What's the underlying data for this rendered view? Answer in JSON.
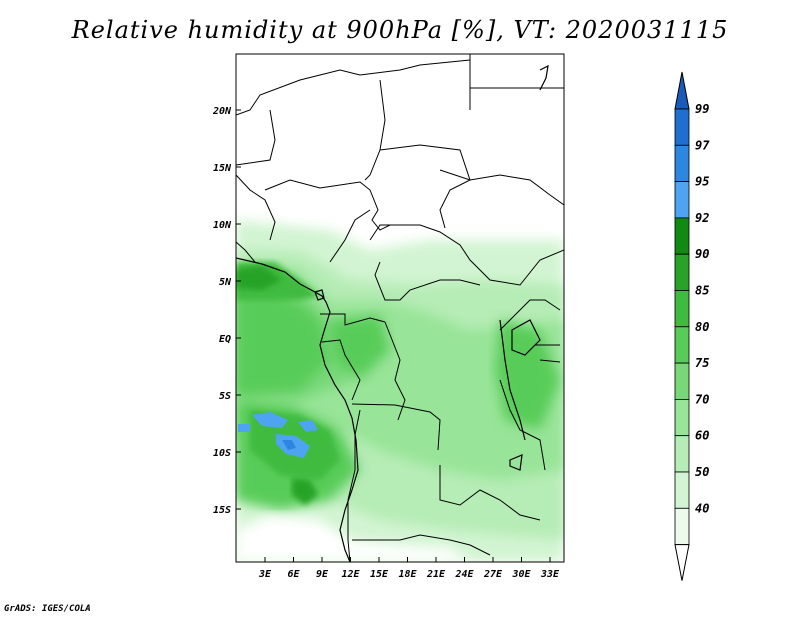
{
  "title": "Relative humidity at 900hPa [%], VT: 2020031115",
  "credit": "GrADS: IGES/COLA",
  "map": {
    "variable": "Relative humidity",
    "level": "900hPa",
    "units": "%",
    "valid_time": "2020031115",
    "lat_labels": [
      "20N",
      "15N",
      "10N",
      "5N",
      "EQ",
      "5S",
      "10S",
      "15S"
    ],
    "lon_labels": [
      "3E",
      "6E",
      "9E",
      "12E",
      "15E",
      "18E",
      "21E",
      "24E",
      "27E",
      "30E",
      "33E"
    ]
  },
  "colorbar": {
    "labels": [
      "99",
      "97",
      "95",
      "92",
      "90",
      "85",
      "80",
      "75",
      "70",
      "60",
      "50",
      "40"
    ],
    "colors": [
      "#1e6fd0",
      "#2d87e0",
      "#4ea4f0",
      "#108a10",
      "#28a328",
      "#3fbb3f",
      "#58cc58",
      "#78d878",
      "#98e498",
      "#b6ecb6",
      "#d2f4d2",
      "#ebfaeb"
    ],
    "top_arrow_color": "#1a5ab8",
    "bottom_arrow_color": "#ffffff"
  }
}
